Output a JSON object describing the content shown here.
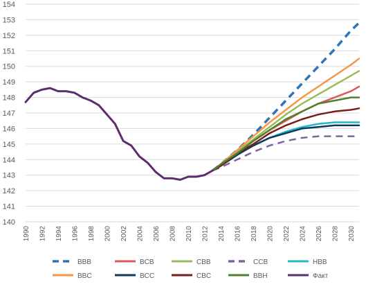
{
  "chart_data": {
    "type": "line",
    "title": "",
    "xlabel": "",
    "ylabel": "",
    "xlim": [
      1990,
      2031
    ],
    "ylim": [
      140,
      154
    ],
    "y_ticks": [
      "140",
      "141",
      "142",
      "143",
      "144",
      "145",
      "146",
      "147",
      "148",
      "149",
      "150",
      "151",
      "152",
      "153",
      "154"
    ],
    "x_ticks": [
      "1990",
      "1992",
      "1994",
      "1996",
      "1998",
      "2000",
      "2002",
      "2004",
      "2006",
      "2008",
      "2010",
      "2012",
      "2014",
      "2016",
      "2018",
      "2020",
      "2022",
      "2024",
      "2026",
      "2028",
      "2030"
    ],
    "grid": "horizontal",
    "legend_position": "bottom",
    "legend_order": [
      "BBB",
      "BCB",
      "CBB",
      "CCB",
      "HBB",
      "BBC",
      "BCC",
      "CBC",
      "BBH",
      "Факт"
    ],
    "series": [
      {
        "name": "Факт",
        "color": "#5b2d6e",
        "dash": "solid",
        "width": 3,
        "x": [
          1990,
          1991,
          1992,
          1993,
          1994,
          1995,
          1996,
          1997,
          1998,
          1999,
          2000,
          2001,
          2002,
          2003,
          2004,
          2005,
          2006,
          2007,
          2008,
          2009,
          2010,
          2011,
          2012,
          2013
        ],
        "y": [
          147.7,
          148.3,
          148.5,
          148.6,
          148.4,
          148.4,
          148.3,
          148.0,
          147.8,
          147.5,
          146.9,
          146.3,
          145.2,
          144.9,
          144.2,
          143.8,
          143.2,
          142.8,
          142.8,
          142.7,
          142.9,
          142.9,
          143.0,
          143.3
        ]
      },
      {
        "name": "BBB",
        "color": "#2e75b6",
        "dash": "dashed",
        "width": 3.5,
        "x": [
          2013,
          2014,
          2016,
          2018,
          2020,
          2022,
          2024,
          2026,
          2028,
          2030,
          2031
        ],
        "y": [
          143.3,
          143.7,
          144.6,
          145.6,
          146.7,
          147.8,
          148.9,
          150.0,
          151.1,
          152.3,
          152.8
        ]
      },
      {
        "name": "BCB",
        "color": "#e15759",
        "dash": "solid",
        "width": 2.5,
        "x": [
          2013,
          2014,
          2016,
          2018,
          2020,
          2022,
          2024,
          2026,
          2028,
          2030,
          2031
        ],
        "y": [
          143.3,
          143.7,
          144.5,
          145.2,
          145.9,
          146.5,
          147.1,
          147.6,
          148.0,
          148.4,
          148.7
        ]
      },
      {
        "name": "CBB",
        "color": "#9bbb59",
        "dash": "solid",
        "width": 2.5,
        "x": [
          2013,
          2014,
          2016,
          2018,
          2020,
          2022,
          2024,
          2026,
          2028,
          2030,
          2031
        ],
        "y": [
          143.3,
          143.7,
          144.5,
          145.3,
          146.1,
          146.9,
          147.6,
          148.2,
          148.8,
          149.4,
          149.7
        ]
      },
      {
        "name": "CCB",
        "color": "#8064a2",
        "dash": "dashed",
        "width": 2.5,
        "x": [
          2013,
          2014,
          2016,
          2018,
          2020,
          2022,
          2024,
          2026,
          2028,
          2030,
          2031
        ],
        "y": [
          143.3,
          143.5,
          144.0,
          144.5,
          144.9,
          145.2,
          145.4,
          145.5,
          145.5,
          145.5,
          145.5
        ]
      },
      {
        "name": "HBB",
        "color": "#1fb8c3",
        "dash": "solid",
        "width": 2.5,
        "x": [
          2013,
          2014,
          2016,
          2018,
          2020,
          2022,
          2024,
          2026,
          2028,
          2030,
          2031
        ],
        "y": [
          143.3,
          143.6,
          144.3,
          144.9,
          145.4,
          145.8,
          146.1,
          146.3,
          146.4,
          146.4,
          146.4
        ]
      },
      {
        "name": "BBC",
        "color": "#f79646",
        "dash": "solid",
        "width": 2.5,
        "x": [
          2013,
          2014,
          2016,
          2018,
          2020,
          2022,
          2024,
          2026,
          2028,
          2030,
          2031
        ],
        "y": [
          143.3,
          143.7,
          144.6,
          145.5,
          146.4,
          147.2,
          148.0,
          148.7,
          149.4,
          150.1,
          150.5
        ]
      },
      {
        "name": "BCC",
        "color": "#0b3a5e",
        "dash": "solid",
        "width": 2.5,
        "x": [
          2013,
          2014,
          2016,
          2018,
          2020,
          2022,
          2024,
          2026,
          2028,
          2030,
          2031
        ],
        "y": [
          143.3,
          143.6,
          144.3,
          144.9,
          145.4,
          145.7,
          146.0,
          146.1,
          146.2,
          146.2,
          146.2
        ]
      },
      {
        "name": "CBC",
        "color": "#7b1c1c",
        "dash": "solid",
        "width": 2.5,
        "x": [
          2013,
          2014,
          2016,
          2018,
          2020,
          2022,
          2024,
          2026,
          2028,
          2030,
          2031
        ],
        "y": [
          143.3,
          143.6,
          144.4,
          145.0,
          145.7,
          146.2,
          146.6,
          146.9,
          147.1,
          147.2,
          147.3
        ]
      },
      {
        "name": "BBH",
        "color": "#4f7f2a",
        "dash": "solid",
        "width": 2.5,
        "x": [
          2013,
          2014,
          2016,
          2018,
          2020,
          2022,
          2024,
          2026,
          2028,
          2030,
          2031
        ],
        "y": [
          143.3,
          143.7,
          144.4,
          145.2,
          145.9,
          146.6,
          147.1,
          147.6,
          147.8,
          148.0,
          148.0
        ]
      }
    ]
  }
}
